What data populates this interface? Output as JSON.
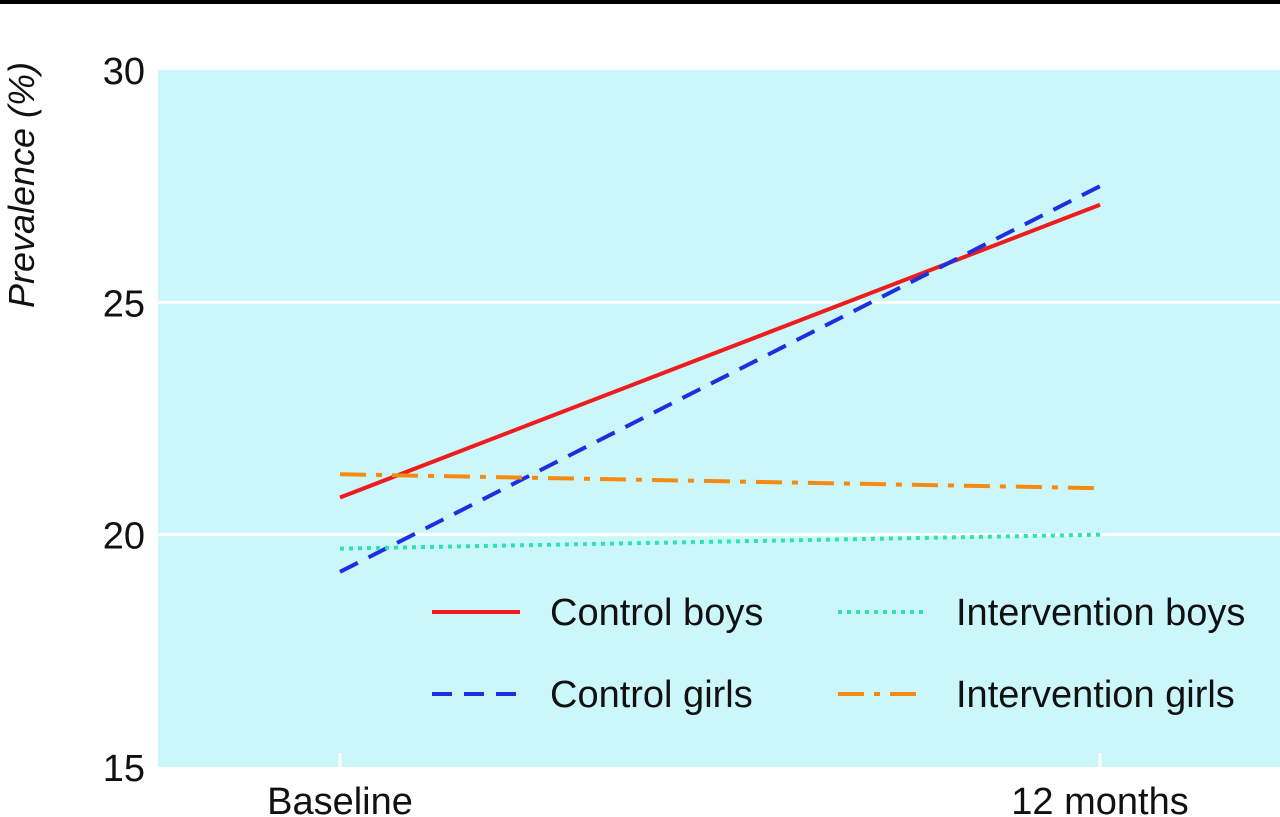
{
  "chart_data": {
    "type": "line",
    "ylabel": "Prevalence (%)",
    "xlabel": "",
    "categories": [
      "Baseline",
      "12 months"
    ],
    "ylim": [
      15,
      30
    ],
    "yticks": [
      15,
      20,
      25,
      30
    ],
    "grid": true,
    "legend_position": "bottom-right",
    "plot_background": "#ccf7fa",
    "series": [
      {
        "name": "Control boys",
        "values": [
          20.8,
          27.1
        ],
        "color": "#ee1c1c",
        "style": "solid"
      },
      {
        "name": "Control girls",
        "values": [
          19.2,
          27.5
        ],
        "color": "#1f2fe0",
        "style": "dashed"
      },
      {
        "name": "Intervention boys",
        "values": [
          19.7,
          20.0
        ],
        "color": "#2de3b0",
        "style": "dotted"
      },
      {
        "name": "Intervention girls",
        "values": [
          21.3,
          21.0
        ],
        "color": "#f58a10",
        "style": "dashdot"
      }
    ]
  }
}
